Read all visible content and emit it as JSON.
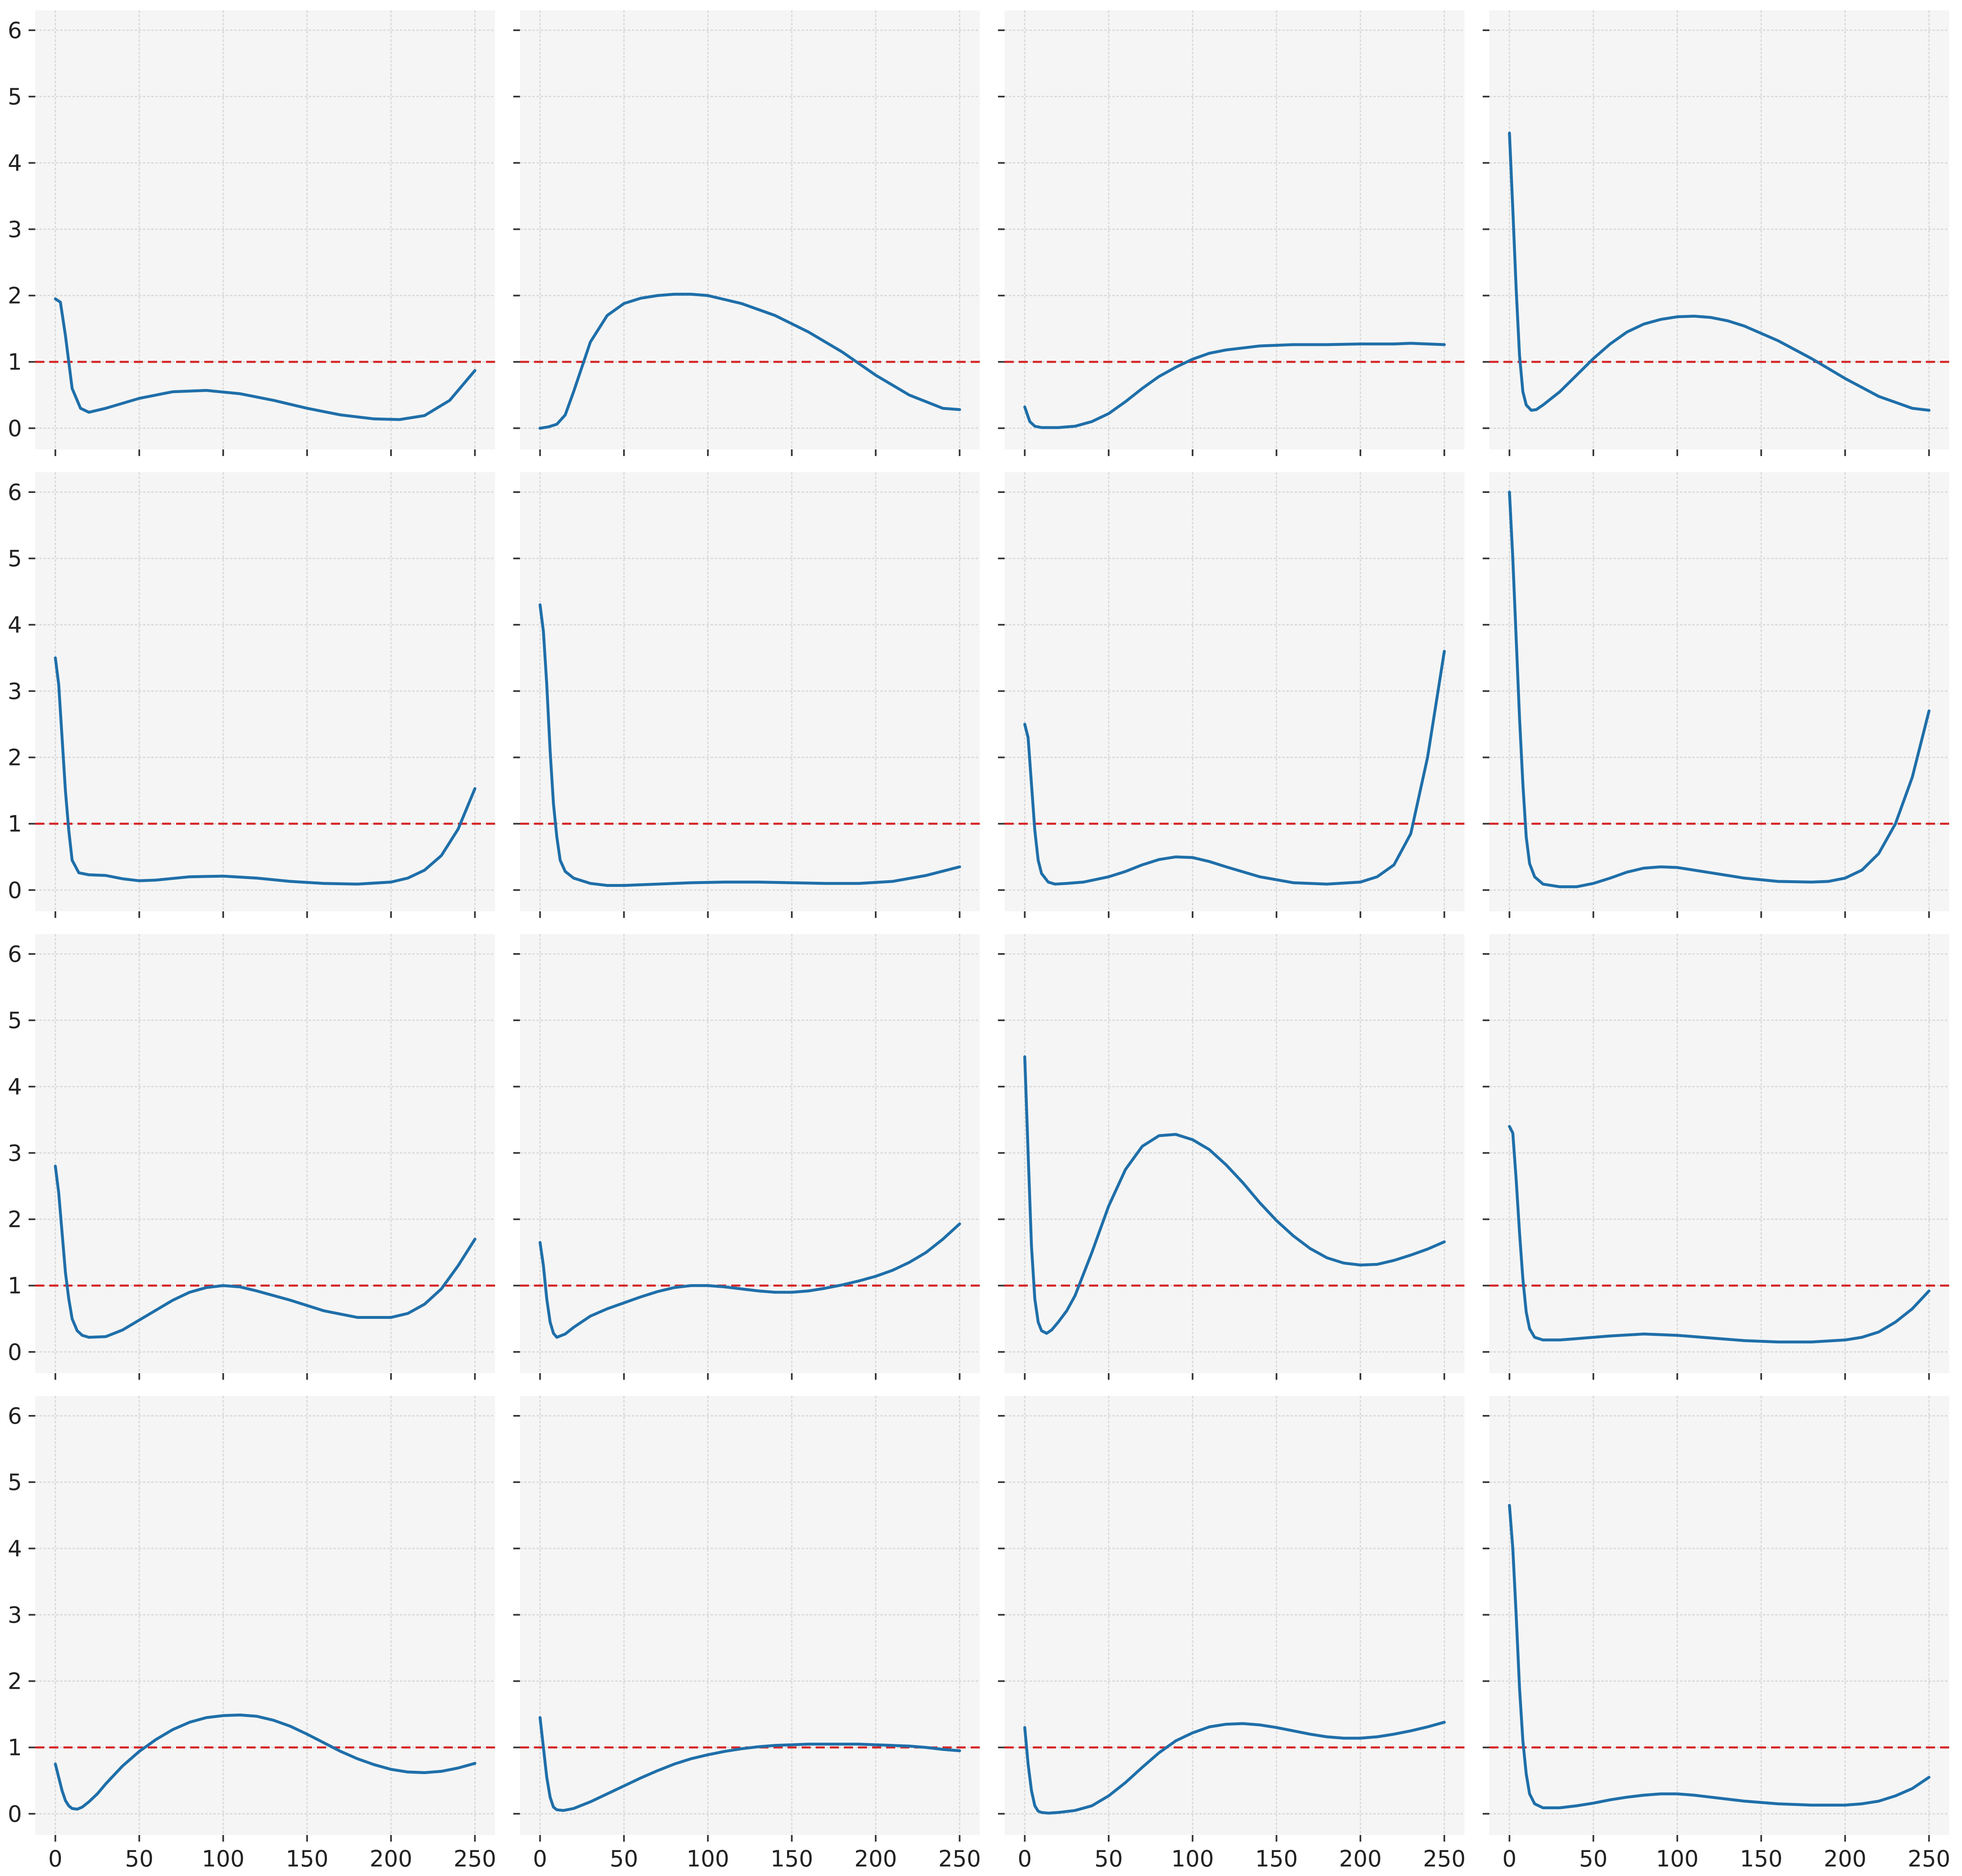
{
  "figure": {
    "layout": "4x4 grid of line plots, shared x and y axes",
    "x_ticks": [
      0,
      50,
      100,
      150,
      200,
      250
    ],
    "y_ticks": [
      0,
      1,
      2,
      3,
      4,
      5,
      6
    ],
    "xlim": [
      -12,
      262
    ],
    "ylim": [
      -0.32,
      6.3
    ],
    "grid": true,
    "panel_background": "#f5f5f5",
    "grid_color": "#d9d9d9",
    "line_color": "#1f6fa9",
    "reference_color": "#d62728"
  },
  "chart_data": [
    {
      "type": "line",
      "row": 1,
      "col": 1,
      "reference_y": 1,
      "series": [
        {
          "x": [
            0,
            3,
            6,
            10,
            15,
            20,
            30,
            50,
            70,
            90,
            110,
            130,
            150,
            170,
            190,
            205,
            220,
            235,
            250
          ],
          "y": [
            1.95,
            1.9,
            1.4,
            0.6,
            0.3,
            0.24,
            0.3,
            0.45,
            0.55,
            0.57,
            0.52,
            0.42,
            0.3,
            0.2,
            0.14,
            0.13,
            0.19,
            0.42,
            0.87
          ]
        }
      ]
    },
    {
      "type": "line",
      "row": 1,
      "col": 2,
      "reference_y": 1,
      "series": [
        {
          "x": [
            0,
            5,
            10,
            15,
            20,
            30,
            40,
            50,
            60,
            70,
            80,
            90,
            100,
            120,
            140,
            160,
            180,
            200,
            220,
            240,
            250
          ],
          "y": [
            0.0,
            0.02,
            0.06,
            0.2,
            0.55,
            1.3,
            1.7,
            1.88,
            1.96,
            2.0,
            2.02,
            2.02,
            2.0,
            1.88,
            1.7,
            1.45,
            1.15,
            0.8,
            0.5,
            0.3,
            0.28
          ]
        }
      ]
    },
    {
      "type": "line",
      "row": 1,
      "col": 3,
      "reference_y": 1,
      "series": [
        {
          "x": [
            0,
            3,
            6,
            10,
            20,
            30,
            40,
            50,
            60,
            70,
            80,
            90,
            100,
            110,
            120,
            140,
            160,
            180,
            200,
            220,
            230,
            240,
            250
          ],
          "y": [
            0.32,
            0.1,
            0.03,
            0.01,
            0.01,
            0.03,
            0.1,
            0.22,
            0.4,
            0.6,
            0.78,
            0.92,
            1.04,
            1.13,
            1.18,
            1.24,
            1.26,
            1.26,
            1.27,
            1.27,
            1.28,
            1.27,
            1.26
          ]
        }
      ]
    },
    {
      "type": "line",
      "row": 1,
      "col": 4,
      "reference_y": 1,
      "series": [
        {
          "x": [
            0,
            2,
            4,
            6,
            8,
            10,
            13,
            16,
            20,
            30,
            40,
            50,
            60,
            70,
            80,
            90,
            100,
            110,
            120,
            130,
            140,
            150,
            160,
            180,
            200,
            220,
            240,
            250
          ],
          "y": [
            4.45,
            3.3,
            2.1,
            1.1,
            0.55,
            0.35,
            0.27,
            0.28,
            0.35,
            0.55,
            0.8,
            1.05,
            1.27,
            1.45,
            1.57,
            1.64,
            1.68,
            1.69,
            1.67,
            1.62,
            1.54,
            1.43,
            1.32,
            1.05,
            0.75,
            0.48,
            0.3,
            0.27
          ]
        }
      ]
    },
    {
      "type": "line",
      "row": 2,
      "col": 1,
      "reference_y": 1,
      "series": [
        {
          "x": [
            0,
            2,
            4,
            6,
            8,
            10,
            14,
            20,
            30,
            40,
            50,
            60,
            80,
            100,
            120,
            140,
            160,
            180,
            200,
            210,
            220,
            230,
            240,
            250
          ],
          "y": [
            3.5,
            3.1,
            2.3,
            1.5,
            0.9,
            0.45,
            0.26,
            0.23,
            0.22,
            0.17,
            0.14,
            0.15,
            0.2,
            0.21,
            0.18,
            0.13,
            0.1,
            0.09,
            0.12,
            0.18,
            0.3,
            0.52,
            0.92,
            1.53
          ]
        }
      ]
    },
    {
      "type": "line",
      "row": 2,
      "col": 2,
      "reference_y": 1,
      "series": [
        {
          "x": [
            0,
            2,
            4,
            6,
            8,
            10,
            12,
            15,
            20,
            30,
            40,
            50,
            70,
            90,
            110,
            130,
            150,
            170,
            190,
            210,
            230,
            250
          ],
          "y": [
            4.3,
            3.9,
            3.1,
            2.1,
            1.3,
            0.8,
            0.45,
            0.28,
            0.18,
            0.1,
            0.07,
            0.07,
            0.09,
            0.11,
            0.12,
            0.12,
            0.11,
            0.1,
            0.1,
            0.13,
            0.22,
            0.35
          ]
        }
      ]
    },
    {
      "type": "line",
      "row": 2,
      "col": 3,
      "reference_y": 1,
      "series": [
        {
          "x": [
            0,
            2,
            4,
            6,
            8,
            10,
            14,
            18,
            25,
            35,
            50,
            60,
            70,
            80,
            90,
            100,
            110,
            120,
            140,
            160,
            180,
            200,
            210,
            220,
            230,
            240,
            250
          ],
          "y": [
            2.5,
            2.3,
            1.6,
            0.9,
            0.45,
            0.25,
            0.12,
            0.09,
            0.1,
            0.12,
            0.2,
            0.28,
            0.38,
            0.46,
            0.5,
            0.49,
            0.43,
            0.35,
            0.2,
            0.11,
            0.09,
            0.12,
            0.2,
            0.38,
            0.85,
            2.0,
            3.6
          ]
        }
      ]
    },
    {
      "type": "line",
      "row": 2,
      "col": 4,
      "reference_y": 1,
      "series": [
        {
          "x": [
            0,
            2,
            4,
            6,
            8,
            10,
            12,
            15,
            20,
            30,
            40,
            50,
            60,
            70,
            80,
            90,
            100,
            120,
            140,
            160,
            180,
            190,
            200,
            210,
            220,
            230,
            240,
            250
          ],
          "y": [
            6.0,
            5.0,
            3.8,
            2.6,
            1.6,
            0.8,
            0.4,
            0.2,
            0.09,
            0.05,
            0.05,
            0.1,
            0.18,
            0.27,
            0.33,
            0.35,
            0.34,
            0.26,
            0.18,
            0.13,
            0.12,
            0.13,
            0.18,
            0.3,
            0.55,
            1.0,
            1.7,
            2.7
          ]
        }
      ]
    },
    {
      "type": "line",
      "row": 3,
      "col": 1,
      "reference_y": 1,
      "series": [
        {
          "x": [
            0,
            2,
            4,
            6,
            8,
            10,
            13,
            16,
            20,
            30,
            40,
            50,
            60,
            70,
            80,
            90,
            100,
            110,
            120,
            140,
            160,
            180,
            200,
            210,
            220,
            230,
            240,
            250
          ],
          "y": [
            2.8,
            2.4,
            1.8,
            1.2,
            0.8,
            0.5,
            0.32,
            0.25,
            0.22,
            0.23,
            0.33,
            0.48,
            0.63,
            0.78,
            0.9,
            0.97,
            1.0,
            0.98,
            0.92,
            0.78,
            0.62,
            0.52,
            0.52,
            0.58,
            0.72,
            0.95,
            1.3,
            1.7
          ]
        }
      ]
    },
    {
      "type": "line",
      "row": 3,
      "col": 2,
      "reference_y": 1,
      "series": [
        {
          "x": [
            0,
            2,
            4,
            6,
            8,
            10,
            15,
            20,
            30,
            40,
            50,
            60,
            70,
            80,
            90,
            100,
            110,
            120,
            130,
            140,
            150,
            160,
            170,
            180,
            190,
            200,
            210,
            220,
            230,
            240,
            250
          ],
          "y": [
            1.65,
            1.3,
            0.8,
            0.45,
            0.28,
            0.22,
            0.27,
            0.37,
            0.54,
            0.65,
            0.74,
            0.83,
            0.91,
            0.97,
            1.0,
            1.0,
            0.98,
            0.95,
            0.92,
            0.9,
            0.9,
            0.92,
            0.96,
            1.01,
            1.07,
            1.14,
            1.23,
            1.35,
            1.5,
            1.7,
            1.93
          ]
        }
      ]
    },
    {
      "type": "line",
      "row": 3,
      "col": 3,
      "reference_y": 1,
      "series": [
        {
          "x": [
            0,
            2,
            4,
            6,
            8,
            10,
            13,
            16,
            20,
            25,
            30,
            40,
            50,
            60,
            70,
            80,
            90,
            100,
            110,
            120,
            130,
            140,
            150,
            160,
            170,
            180,
            190,
            200,
            210,
            220,
            230,
            240,
            250
          ],
          "y": [
            4.45,
            3.0,
            1.6,
            0.8,
            0.45,
            0.32,
            0.28,
            0.33,
            0.45,
            0.62,
            0.85,
            1.5,
            2.2,
            2.75,
            3.1,
            3.26,
            3.28,
            3.2,
            3.05,
            2.82,
            2.55,
            2.25,
            1.98,
            1.75,
            1.56,
            1.42,
            1.34,
            1.31,
            1.32,
            1.38,
            1.46,
            1.55,
            1.66
          ]
        }
      ]
    },
    {
      "type": "line",
      "row": 3,
      "col": 4,
      "reference_y": 1,
      "series": [
        {
          "x": [
            0,
            2,
            4,
            6,
            8,
            10,
            12,
            15,
            20,
            30,
            40,
            60,
            80,
            100,
            120,
            140,
            160,
            180,
            200,
            210,
            220,
            230,
            240,
            250
          ],
          "y": [
            3.4,
            3.3,
            2.6,
            1.8,
            1.1,
            0.6,
            0.35,
            0.22,
            0.18,
            0.18,
            0.2,
            0.24,
            0.27,
            0.25,
            0.21,
            0.17,
            0.15,
            0.15,
            0.18,
            0.22,
            0.3,
            0.45,
            0.65,
            0.92
          ]
        }
      ]
    },
    {
      "type": "line",
      "row": 4,
      "col": 1,
      "reference_y": 1,
      "series": [
        {
          "x": [
            0,
            2,
            4,
            6,
            8,
            10,
            13,
            16,
            20,
            25,
            30,
            40,
            50,
            60,
            70,
            80,
            90,
            100,
            110,
            120,
            130,
            140,
            150,
            160,
            170,
            180,
            190,
            200,
            210,
            220,
            230,
            240,
            250
          ],
          "y": [
            0.75,
            0.55,
            0.35,
            0.2,
            0.12,
            0.08,
            0.07,
            0.1,
            0.18,
            0.3,
            0.45,
            0.72,
            0.94,
            1.12,
            1.27,
            1.38,
            1.45,
            1.48,
            1.49,
            1.47,
            1.41,
            1.32,
            1.2,
            1.07,
            0.94,
            0.83,
            0.74,
            0.67,
            0.63,
            0.62,
            0.64,
            0.69,
            0.76
          ]
        }
      ]
    },
    {
      "type": "line",
      "row": 4,
      "col": 2,
      "reference_y": 1,
      "series": [
        {
          "x": [
            0,
            2,
            4,
            6,
            8,
            10,
            14,
            20,
            30,
            40,
            50,
            60,
            70,
            80,
            90,
            100,
            110,
            120,
            130,
            140,
            150,
            160,
            170,
            180,
            190,
            200,
            210,
            220,
            230,
            240,
            250
          ],
          "y": [
            1.45,
            1.0,
            0.55,
            0.25,
            0.1,
            0.06,
            0.05,
            0.08,
            0.18,
            0.3,
            0.42,
            0.54,
            0.65,
            0.75,
            0.83,
            0.89,
            0.94,
            0.98,
            1.01,
            1.03,
            1.04,
            1.05,
            1.05,
            1.05,
            1.05,
            1.04,
            1.03,
            1.02,
            1.0,
            0.97,
            0.95
          ]
        }
      ]
    },
    {
      "type": "line",
      "row": 4,
      "col": 3,
      "reference_y": 1,
      "series": [
        {
          "x": [
            0,
            2,
            4,
            6,
            8,
            10,
            14,
            20,
            30,
            40,
            50,
            60,
            70,
            80,
            90,
            100,
            110,
            120,
            130,
            140,
            150,
            160,
            170,
            180,
            190,
            200,
            210,
            220,
            230,
            240,
            250
          ],
          "y": [
            1.3,
            0.75,
            0.35,
            0.12,
            0.04,
            0.02,
            0.01,
            0.02,
            0.05,
            0.12,
            0.27,
            0.47,
            0.7,
            0.92,
            1.1,
            1.22,
            1.31,
            1.35,
            1.36,
            1.34,
            1.3,
            1.25,
            1.2,
            1.16,
            1.14,
            1.14,
            1.16,
            1.2,
            1.25,
            1.31,
            1.38
          ]
        }
      ]
    },
    {
      "type": "line",
      "row": 4,
      "col": 4,
      "reference_y": 1,
      "series": [
        {
          "x": [
            0,
            2,
            4,
            6,
            8,
            10,
            12,
            15,
            20,
            30,
            40,
            50,
            60,
            70,
            80,
            90,
            100,
            110,
            120,
            130,
            140,
            160,
            180,
            200,
            210,
            220,
            230,
            240,
            250
          ],
          "y": [
            4.65,
            4.0,
            3.0,
            1.9,
            1.1,
            0.6,
            0.3,
            0.15,
            0.09,
            0.09,
            0.12,
            0.16,
            0.21,
            0.25,
            0.28,
            0.3,
            0.3,
            0.28,
            0.25,
            0.22,
            0.19,
            0.15,
            0.13,
            0.13,
            0.15,
            0.19,
            0.27,
            0.38,
            0.55
          ]
        }
      ]
    }
  ]
}
